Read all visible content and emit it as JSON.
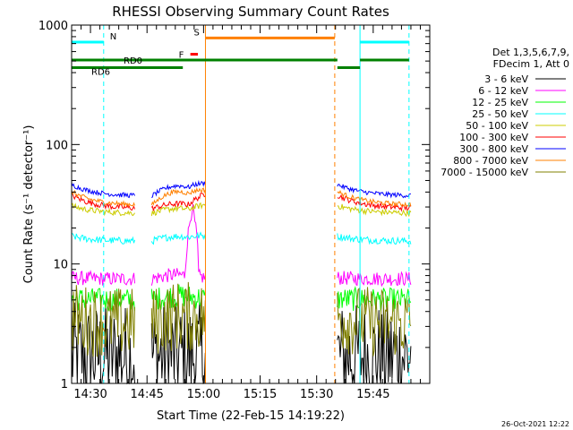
{
  "chart_data": {
    "type": "line",
    "title": "RHESSI Observing Summary Count Rates",
    "xlabel": "Start Time (22-Feb-15 14:19:22)",
    "ylabel": "Count Rate (s⁻¹ detector⁻¹)",
    "y_scale": "log",
    "ylim": [
      1,
      1000
    ],
    "y_ticks": [
      "1",
      "10",
      "100",
      "1000"
    ],
    "xlim_minutes": [
      -5,
      90
    ],
    "x_ticks": [
      {
        "label": "14:30",
        "min": 0
      },
      {
        "label": "14:45",
        "min": 15
      },
      {
        "label": "15:00",
        "min": 30
      },
      {
        "label": "15:15",
        "min": 45
      },
      {
        "label": "15:30",
        "min": 60
      },
      {
        "label": "15:45",
        "min": 75
      }
    ],
    "legend_header": [
      "Det 1,3,5,6,7,9,",
      "FDecim 1, Att 0"
    ],
    "legend_position": "right",
    "timestamp": "26-Oct-2021 12:22",
    "series": [
      {
        "name": "3 - 6 keV",
        "color": "#000000",
        "base": 1.7,
        "arc": 0.0,
        "decay": 0.0,
        "noise": 0.45,
        "clip": true
      },
      {
        "name": "6 - 12 keV",
        "color": "#ff00ff",
        "base": 7.5,
        "arc": 0.08,
        "decay": 0.02,
        "noise": 0.06
      },
      {
        "name": "12 - 25 keV",
        "color": "#00ff00",
        "base": 5.0,
        "arc": 0.08,
        "decay": 0.02,
        "noise": 0.1
      },
      {
        "name": "25 - 50 keV",
        "color": "#00ffff",
        "base": 15.5,
        "arc": 0.1,
        "decay": 0.1,
        "noise": 0.03
      },
      {
        "name": "50 - 100 keV",
        "color": "#cccc00",
        "base": 26.5,
        "arc": 0.1,
        "decay": 0.16,
        "noise": 0.025
      },
      {
        "name": "100 - 300 keV",
        "color": "#ff0000",
        "base": 29.0,
        "arc": 0.1,
        "decay": 0.3,
        "noise": 0.025
      },
      {
        "name": "300 - 800 keV",
        "color": "#0000ff",
        "base": 37.0,
        "arc": 0.22,
        "decay": 0.25,
        "noise": 0.02
      },
      {
        "name": "800 - 7000 keV",
        "color": "#ff8000",
        "base": 31.0,
        "arc": 0.3,
        "decay": 0.3,
        "noise": 0.02
      },
      {
        "name": "7000 - 15000 keV",
        "color": "#808000",
        "base": 3.2,
        "arc": 0.15,
        "decay": 0.12,
        "noise": 0.3
      }
    ],
    "data_intervals_minutes": [
      [
        -5,
        11.8
      ],
      [
        16.2,
        30.5
      ],
      [
        65.5,
        85
      ]
    ],
    "flare_spike": {
      "start": 24.5,
      "end": 28.5,
      "peak": 27.0,
      "series": "6 - 12 keV",
      "peak_value": 30
    },
    "cyan_lines": [
      {
        "min": -5,
        "style": "solid"
      },
      {
        "min": 3.5,
        "style": "dashed"
      },
      {
        "min": 71.5,
        "style": "solid"
      },
      {
        "min": 84.5,
        "style": "dashed"
      }
    ],
    "orange_lines": [
      {
        "min": 30.5,
        "style": "solid"
      },
      {
        "min": 64.8,
        "style": "dashed"
      }
    ],
    "flag_bars": [
      {
        "label": "N",
        "color": "#00ffff",
        "segments": [
          [
            -5,
            3.5
          ],
          [
            71.5,
            84.5
          ]
        ],
        "value": 720
      },
      {
        "label": "S",
        "color": "#ff8000",
        "segments": [
          [
            30.5,
            64.8
          ]
        ],
        "value": 780
      },
      {
        "label": "F",
        "color": "#ff0000",
        "segments": [
          [
            26.5,
            28.5
          ]
        ],
        "value": 570
      },
      {
        "label": "RD0",
        "color": "#008000",
        "segments": [
          [
            -5,
            65.5
          ],
          [
            71.5,
            84.5
          ]
        ],
        "value": 510
      },
      {
        "label": "RD6",
        "color": "#008000",
        "segments": [
          [
            -5,
            24.5
          ],
          [
            65.5,
            71.5
          ]
        ],
        "value": 440
      }
    ]
  }
}
